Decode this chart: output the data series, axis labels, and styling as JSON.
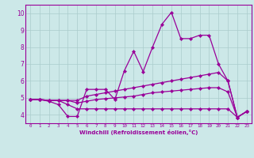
{
  "xlabel": "Windchill (Refroidissement éolien,°C)",
  "xlim": [
    -0.5,
    23.5
  ],
  "ylim": [
    3.5,
    10.5
  ],
  "yticks": [
    4,
    5,
    6,
    7,
    8,
    9,
    10
  ],
  "xticks": [
    0,
    1,
    2,
    3,
    4,
    5,
    6,
    7,
    8,
    9,
    10,
    11,
    12,
    13,
    14,
    15,
    16,
    17,
    18,
    19,
    20,
    21,
    22,
    23
  ],
  "background_color": "#cce8e8",
  "grid_color": "#aacccc",
  "line_color": "#990099",
  "s1": [
    4.9,
    4.9,
    4.8,
    4.6,
    3.9,
    3.9,
    5.5,
    5.5,
    5.5,
    4.9,
    6.6,
    7.75,
    6.55,
    8.0,
    9.35,
    10.05,
    8.5,
    8.5,
    8.7,
    8.7,
    7.0,
    6.0,
    3.85,
    4.2
  ],
  "s2": [
    4.9,
    4.9,
    4.85,
    4.85,
    4.6,
    4.35,
    4.35,
    4.35,
    4.35,
    4.35,
    4.35,
    4.35,
    4.35,
    4.35,
    4.35,
    4.35,
    4.35,
    4.35,
    4.35,
    4.35,
    4.35,
    4.35,
    3.85,
    4.2
  ],
  "s3": [
    4.9,
    4.9,
    4.85,
    4.85,
    4.85,
    4.85,
    5.1,
    5.2,
    5.3,
    5.4,
    5.5,
    5.6,
    5.7,
    5.8,
    5.9,
    6.0,
    6.1,
    6.2,
    6.3,
    6.4,
    6.5,
    6.0,
    3.85,
    4.2
  ],
  "s4": [
    4.9,
    4.9,
    4.85,
    4.85,
    4.85,
    4.7,
    4.8,
    4.9,
    4.95,
    5.0,
    5.05,
    5.1,
    5.2,
    5.3,
    5.35,
    5.4,
    5.45,
    5.5,
    5.55,
    5.6,
    5.6,
    5.35,
    3.85,
    4.2
  ],
  "marker_size": 2.2,
  "linewidth": 0.9,
  "xlabel_fontsize": 5.0,
  "tick_fontsize_x": 4.2,
  "tick_fontsize_y": 5.5
}
